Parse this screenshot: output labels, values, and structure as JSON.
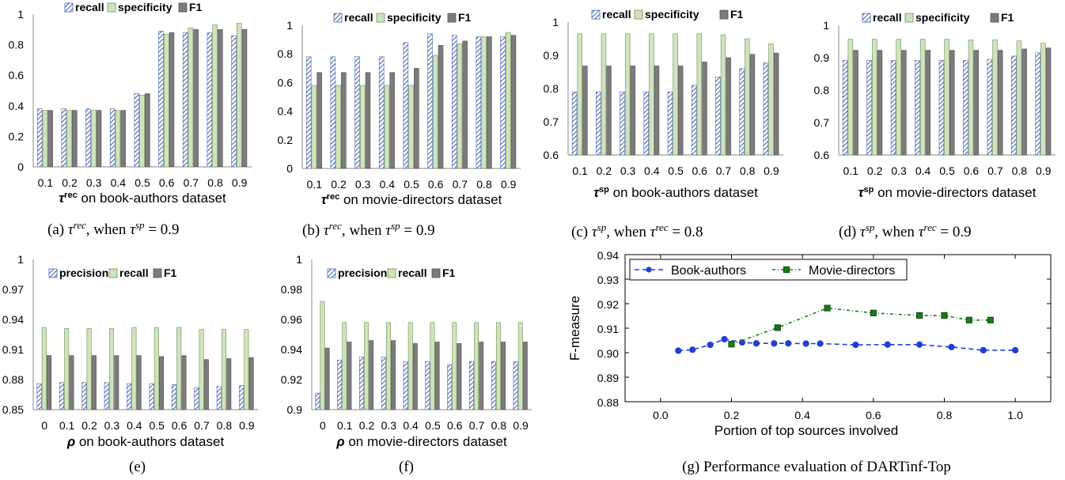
{
  "colors": {
    "recall_or_precision_hatch": "#4a66b0",
    "specificity_or_recall_fill": "#cfe3bd",
    "specificity_or_recall_stroke": "#6f8f55",
    "f1_fill": "#7b7b7b",
    "book_authors_line": "#1f3fd6",
    "movie_directors_line": "#1b7a1b"
  },
  "chart_data": [
    {
      "id": "a",
      "type": "bar",
      "categories": [
        "0.1",
        "0.2",
        "0.3",
        "0.4",
        "0.5",
        "0.6",
        "0.7",
        "0.8",
        "0.9"
      ],
      "series": [
        {
          "name": "recall",
          "values": [
            0.38,
            0.38,
            0.38,
            0.38,
            0.48,
            0.89,
            0.88,
            0.88,
            0.86
          ]
        },
        {
          "name": "specificity",
          "values": [
            0.37,
            0.37,
            0.37,
            0.37,
            0.47,
            0.87,
            0.91,
            0.93,
            0.94
          ]
        },
        {
          "name": "F1",
          "values": [
            0.37,
            0.37,
            0.37,
            0.37,
            0.48,
            0.88,
            0.9,
            0.9,
            0.9
          ]
        }
      ],
      "ylim": [
        0,
        1
      ],
      "yticks": [
        "0",
        "0.2",
        "0.4",
        "0.6",
        "0.8",
        "1"
      ],
      "xlabel_symbol": "τ",
      "xlabel_sup": "rec",
      "xlabel_rest": " on book-authors dataset",
      "caption": {
        "prefix": "(a) ",
        "t1": "τ",
        "s1": "rec",
        "mid": ", when ",
        "t2": "τ",
        "s2": "sp",
        "end": " = 0.9"
      }
    },
    {
      "id": "b",
      "type": "bar",
      "categories": [
        "0.1",
        "0.2",
        "0.3",
        "0.4",
        "0.5",
        "0.6",
        "0.7",
        "0.8",
        "0.9"
      ],
      "series": [
        {
          "name": "recall",
          "values": [
            0.78,
            0.78,
            0.78,
            0.78,
            0.88,
            0.94,
            0.93,
            0.92,
            0.92
          ]
        },
        {
          "name": "specificity",
          "values": [
            0.58,
            0.58,
            0.58,
            0.58,
            0.58,
            0.79,
            0.87,
            0.92,
            0.95
          ]
        },
        {
          "name": "F1",
          "values": [
            0.67,
            0.67,
            0.67,
            0.67,
            0.7,
            0.86,
            0.89,
            0.92,
            0.93
          ]
        }
      ],
      "ylim": [
        0,
        1
      ],
      "yticks": [
        "0",
        "0.2",
        "0.4",
        "0.6",
        "0.8",
        "1"
      ],
      "xlabel_symbol": "τ",
      "xlabel_sup": "rec",
      "xlabel_rest": " on movie-directors dataset",
      "caption": {
        "prefix": "(b) ",
        "t1": "τ",
        "s1": "rec",
        "mid": ", when ",
        "t2": "τ",
        "s2": "sp",
        "end": " = 0.9"
      }
    },
    {
      "id": "c",
      "type": "bar",
      "categories": [
        "0.1",
        "0.2",
        "0.3",
        "0.4",
        "0.5",
        "0.6",
        "0.7",
        "0.8",
        "0.9"
      ],
      "series": [
        {
          "name": "recall",
          "values": [
            0.79,
            0.79,
            0.79,
            0.79,
            0.79,
            0.81,
            0.835,
            0.86,
            0.877
          ]
        },
        {
          "name": "specificity",
          "values": [
            0.965,
            0.965,
            0.965,
            0.965,
            0.965,
            0.965,
            0.962,
            0.95,
            0.935
          ]
        },
        {
          "name": "F1",
          "values": [
            0.868,
            0.868,
            0.868,
            0.868,
            0.868,
            0.88,
            0.893,
            0.903,
            0.907
          ]
        }
      ],
      "ylim": [
        0.6,
        1
      ],
      "yticks": [
        "0.6",
        "0.7",
        "0.8",
        "0.9",
        "1"
      ],
      "xlabel_symbol": "τ",
      "xlabel_sup": "sp",
      "xlabel_rest": " on book-authors dataset",
      "caption": {
        "prefix": "(c) ",
        "t1": "τ",
        "s1": "sp",
        "mid": ", when ",
        "t2": "τ",
        "s2": "rec",
        "end": " = 0.8"
      }
    },
    {
      "id": "d",
      "type": "bar",
      "categories": [
        "0.1",
        "0.2",
        "0.3",
        "0.4",
        "0.5",
        "0.6",
        "0.7",
        "0.8",
        "0.9"
      ],
      "series": [
        {
          "name": "recall",
          "values": [
            0.892,
            0.892,
            0.892,
            0.892,
            0.892,
            0.892,
            0.895,
            0.905,
            0.915
          ]
        },
        {
          "name": "specificity",
          "values": [
            0.957,
            0.957,
            0.957,
            0.957,
            0.957,
            0.955,
            0.955,
            0.952,
            0.945
          ]
        },
        {
          "name": "F1",
          "values": [
            0.923,
            0.923,
            0.923,
            0.923,
            0.923,
            0.923,
            0.923,
            0.927,
            0.93
          ]
        }
      ],
      "ylim": [
        0.6,
        1
      ],
      "yticks": [
        "0.6",
        "0.7",
        "0.8",
        "0.9",
        "1"
      ],
      "xlabel_symbol": "τ",
      "xlabel_sup": "sp",
      "xlabel_rest": " on movie-directors dataset",
      "caption": {
        "prefix": "(d) ",
        "t1": "τ",
        "s1": "sp",
        "mid": ", when ",
        "t2": "τ",
        "s2": "rec",
        "end": " = 0.9"
      }
    },
    {
      "id": "e",
      "type": "bar",
      "categories": [
        "0",
        "0.1",
        "0.2",
        "0.3",
        "0.4",
        "0.5",
        "0.6",
        "0.7",
        "0.8",
        "0.9"
      ],
      "series": [
        {
          "name": "precision",
          "values": [
            0.876,
            0.877,
            0.877,
            0.877,
            0.876,
            0.876,
            0.875,
            0.872,
            0.873,
            0.874
          ]
        },
        {
          "name": "recall",
          "values": [
            0.932,
            0.931,
            0.931,
            0.931,
            0.932,
            0.932,
            0.932,
            0.93,
            0.93,
            0.93
          ]
        },
        {
          "name": "F1",
          "values": [
            0.904,
            0.904,
            0.904,
            0.904,
            0.904,
            0.903,
            0.904,
            0.9,
            0.901,
            0.902
          ]
        }
      ],
      "ylim": [
        0.85,
        1
      ],
      "yticks": [
        "0.85",
        "0.88",
        "0.91",
        "0.94",
        "0.97",
        "1"
      ],
      "xlabel_symbol": "ρ",
      "xlabel_sup": "",
      "xlabel_rest": " on book-authors dataset",
      "caption": {
        "prefix": "(e)",
        "t1": "",
        "s1": "",
        "mid": "",
        "t2": "",
        "s2": "",
        "end": ""
      }
    },
    {
      "id": "f",
      "type": "bar",
      "categories": [
        "0",
        "0.1",
        "0.2",
        "0.3",
        "0.4",
        "0.5",
        "0.6",
        "0.7",
        "0.8",
        "0.9"
      ],
      "series": [
        {
          "name": "precision",
          "values": [
            0.911,
            0.933,
            0.935,
            0.935,
            0.932,
            0.932,
            0.93,
            0.932,
            0.932,
            0.932
          ]
        },
        {
          "name": "recall",
          "values": [
            0.972,
            0.958,
            0.958,
            0.958,
            0.958,
            0.958,
            0.958,
            0.958,
            0.958,
            0.958
          ]
        },
        {
          "name": "F1",
          "values": [
            0.941,
            0.945,
            0.946,
            0.946,
            0.944,
            0.945,
            0.944,
            0.945,
            0.945,
            0.945
          ]
        }
      ],
      "ylim": [
        0.9,
        1
      ],
      "yticks": [
        "0.9",
        "0.92",
        "0.94",
        "0.96",
        "0.98",
        "1"
      ],
      "xlabel_symbol": "ρ",
      "xlabel_sup": "",
      "xlabel_rest": " on movie-directors dataset",
      "caption": {
        "prefix": "(f)",
        "t1": "",
        "s1": "",
        "mid": "",
        "t2": "",
        "s2": "",
        "end": ""
      }
    },
    {
      "id": "g",
      "type": "line",
      "series": [
        {
          "name": "Book-authors",
          "x": [
            0.05,
            0.09,
            0.14,
            0.18,
            0.23,
            0.27,
            0.32,
            0.36,
            0.41,
            0.45,
            0.55,
            0.64,
            0.73,
            0.82,
            0.91,
            1.0
          ],
          "y": [
            0.9008,
            0.9012,
            0.9032,
            0.9055,
            0.9042,
            0.9038,
            0.9038,
            0.9038,
            0.9037,
            0.9037,
            0.9032,
            0.9033,
            0.9033,
            0.9023,
            0.901,
            0.901
          ]
        },
        {
          "name": "Movie-directors",
          "x": [
            0.2,
            0.33,
            0.47,
            0.6,
            0.73,
            0.8,
            0.87,
            0.93
          ],
          "y": [
            0.9035,
            0.9102,
            0.9182,
            0.9162,
            0.9152,
            0.9152,
            0.9133,
            0.9133
          ]
        }
      ],
      "xlim": [
        -0.1,
        1.1
      ],
      "ylim": [
        0.88,
        0.94
      ],
      "xticks": [
        "0.0",
        "0.2",
        "0.4",
        "0.6",
        "0.8",
        "1.0"
      ],
      "yticks": [
        "0.88",
        "0.89",
        "0.90",
        "0.91",
        "0.92",
        "0.93",
        "0.94"
      ],
      "xlabel": "Portion of top sources involved",
      "ylabel": "F-measure",
      "caption": "(g) Performance evaluation of DARTinf-Top"
    }
  ]
}
